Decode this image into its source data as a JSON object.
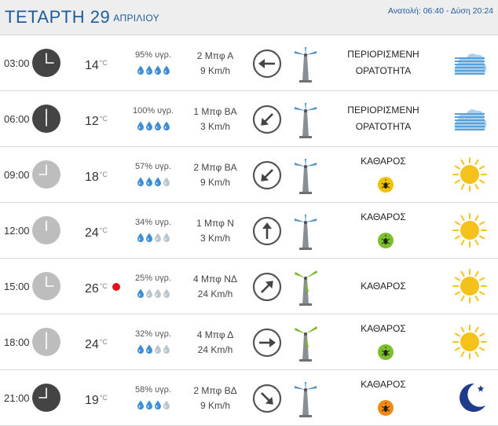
{
  "header": {
    "day_label": "ΤΕΤΑΡΤΗ 29",
    "month_label": "ΑΠΡΙΛΙΟΥ",
    "sun_times": "Ανατολή: 06:40  - Δύση 20:24"
  },
  "colors": {
    "title_blue": "#1e5c9c",
    "alert_red": "#e0121b",
    "drop_blue": "#3d8ed6",
    "drop_grey": "#bcc6cf",
    "sun_yellow": "#f4c21b"
  },
  "rows": [
    {
      "time": "03:00",
      "temp": "14",
      "unit": "°C",
      "humidity": "95% υγρ.",
      "drops_filled": 4,
      "wind_force": "2 Μπφ Α",
      "wind_speed": "9 Km/h",
      "wind_dir": "A",
      "wind_arrow": "arrow-left-icon",
      "condition": [
        "ΠΕΡΙΟΡΙΣΜΕΝΗ",
        "ΟΡΑΤΟΤΗΤΑ"
      ],
      "pollen": null,
      "weather_icon": "fog-icon",
      "night": true,
      "alert": false
    },
    {
      "time": "06:00",
      "temp": "12",
      "unit": "°C",
      "humidity": "100% υγρ.",
      "drops_filled": 4,
      "wind_force": "1 Μπφ ΒΑ",
      "wind_speed": "3 Km/h",
      "wind_dir": "NE",
      "wind_arrow": "arrow-down-left-icon",
      "condition": [
        "ΠΕΡΙΟΡΙΣΜΕΝΗ",
        "ΟΡΑΤΟΤΗΤΑ"
      ],
      "pollen": null,
      "weather_icon": "fog-icon",
      "night": true,
      "alert": false
    },
    {
      "time": "09:00",
      "temp": "18",
      "unit": "°C",
      "humidity": "57% υγρ.",
      "drops_filled": 3,
      "wind_force": "2 Μπφ ΒΑ",
      "wind_speed": "9 Km/h",
      "wind_dir": "NE",
      "wind_arrow": "arrow-down-left-icon",
      "condition": [
        "ΚΑΘΑΡΟΣ"
      ],
      "pollen": "yellow",
      "weather_icon": "sun-icon",
      "night": false,
      "alert": false
    },
    {
      "time": "12:00",
      "temp": "24",
      "unit": "°C",
      "humidity": "34% υγρ.",
      "drops_filled": 2,
      "wind_force": "1 Μπφ Ν",
      "wind_speed": "3 Km/h",
      "wind_dir": "S",
      "wind_arrow": "arrow-up-icon",
      "condition": [
        "ΚΑΘΑΡΟΣ"
      ],
      "pollen": "green",
      "weather_icon": "sun-icon",
      "night": false,
      "alert": false
    },
    {
      "time": "15:00",
      "temp": "26",
      "unit": "°C",
      "humidity": "25% υγρ.",
      "drops_filled": 1,
      "wind_force": "4 Μπφ ΝΔ",
      "wind_speed": "24 Km/h",
      "wind_dir": "SW",
      "wind_arrow": "arrow-up-right-icon",
      "condition": [
        "ΚΑΘΑΡΟΣ"
      ],
      "pollen": null,
      "weather_icon": "sun-icon",
      "night": false,
      "alert": true
    },
    {
      "time": "18:00",
      "temp": "24",
      "unit": "°C",
      "humidity": "32% υγρ.",
      "drops_filled": 2,
      "wind_force": "4 Μπφ Δ",
      "wind_speed": "24 Km/h",
      "wind_dir": "W",
      "wind_arrow": "arrow-right-icon",
      "condition": [
        "ΚΑΘΑΡΟΣ"
      ],
      "pollen": "green",
      "weather_icon": "sun-icon",
      "night": false,
      "alert": false
    },
    {
      "time": "21:00",
      "temp": "19",
      "unit": "°C",
      "humidity": "58% υγρ.",
      "drops_filled": 3,
      "wind_force": "2 Μπφ ΒΔ",
      "wind_speed": "9 Km/h",
      "wind_dir": "NW",
      "wind_arrow": "arrow-down-right-icon",
      "condition": [
        "ΚΑΘΑΡΟΣ"
      ],
      "pollen": "orange",
      "weather_icon": "moon-icon",
      "night": true,
      "alert": false
    }
  ]
}
